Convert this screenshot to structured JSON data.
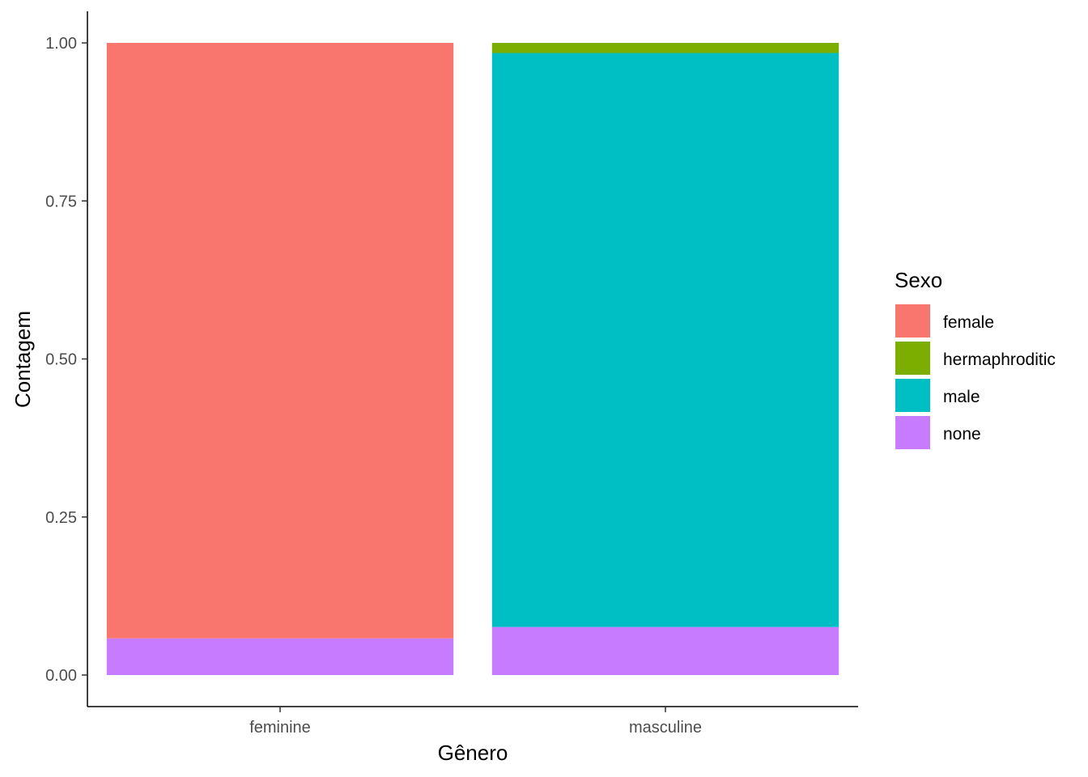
{
  "chart_data": {
    "type": "bar",
    "stacked": true,
    "position": "fill",
    "categories": [
      "feminine",
      "masculine"
    ],
    "xlabel": "Gênero",
    "ylabel": "Contagem",
    "ylim": [
      0,
      1
    ],
    "yticks": [
      0.0,
      0.25,
      0.5,
      0.75,
      1.0
    ],
    "ytick_labels": [
      "0.00",
      "0.25",
      "0.50",
      "0.75",
      "1.00"
    ],
    "grid": false,
    "legend": {
      "title": "Sexo",
      "position": "right"
    },
    "stack_order_top_to_bottom": [
      "female",
      "hermaphroditic",
      "male",
      "none"
    ],
    "series": [
      {
        "name": "female",
        "color": "#F8766D",
        "values": [
          0.942,
          0.0
        ]
      },
      {
        "name": "hermaphroditic",
        "color": "#7CAE00",
        "values": [
          0.0,
          0.016
        ]
      },
      {
        "name": "male",
        "color": "#00BFC4",
        "values": [
          0.0,
          0.908
        ]
      },
      {
        "name": "none",
        "color": "#C77CFF",
        "values": [
          0.058,
          0.076
        ]
      }
    ]
  }
}
